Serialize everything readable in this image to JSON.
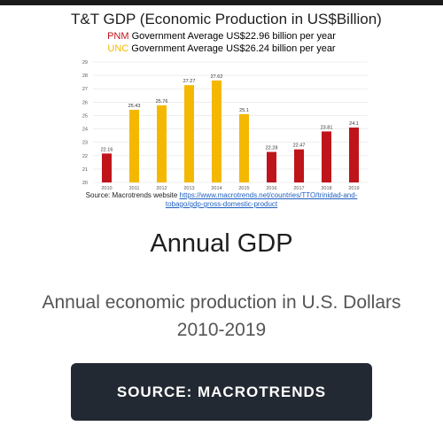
{
  "chart_data": {
    "type": "bar",
    "title": "T&T GDP (Economic Production in US$Billion)",
    "subtitle_pnm": {
      "party": "PNM",
      "text": " Government Average US$22.96 billion per year",
      "color": "#c0141b"
    },
    "subtitle_unc": {
      "party": "UNC",
      "text": " Government Average US$26.24 billion per year",
      "color": "#f5b800"
    },
    "categories": [
      "2010",
      "2011",
      "2012",
      "2013",
      "2014",
      "2015",
      "2016",
      "2017",
      "2018",
      "2019"
    ],
    "values": [
      22.16,
      25.43,
      25.76,
      27.27,
      27.62,
      25.1,
      22.28,
      22.47,
      23.81,
      24.1
    ],
    "value_labels": [
      "22.16",
      "25.43",
      "25.76",
      "27.27",
      "27.62",
      "25.1",
      "22.28",
      "22.47",
      "23.81",
      "24.1"
    ],
    "bar_colors": [
      "#c0141b",
      "#f5b800",
      "#f5b800",
      "#f5b800",
      "#f5b800",
      "#f5b800",
      "#c0141b",
      "#c0141b",
      "#c0141b",
      "#c0141b"
    ],
    "ylim": [
      20,
      29
    ],
    "yticks": [
      "20",
      "21",
      "22",
      "23",
      "24",
      "25",
      "26",
      "27",
      "28",
      "29"
    ],
    "grid": true,
    "legend": "none",
    "xlabel": "",
    "ylabel": ""
  },
  "source": {
    "prefix": "Source: Macrotrends website ",
    "link": "https://www.macrotrends.net/countries/TTO/trinidad-and-tobago/gdp-gross-domestic-product"
  },
  "headline": "Annual GDP",
  "description": "Annual economic production in U.S. Dollars 2010-2019",
  "button_label": "SOURCE: MACROTRENDS"
}
